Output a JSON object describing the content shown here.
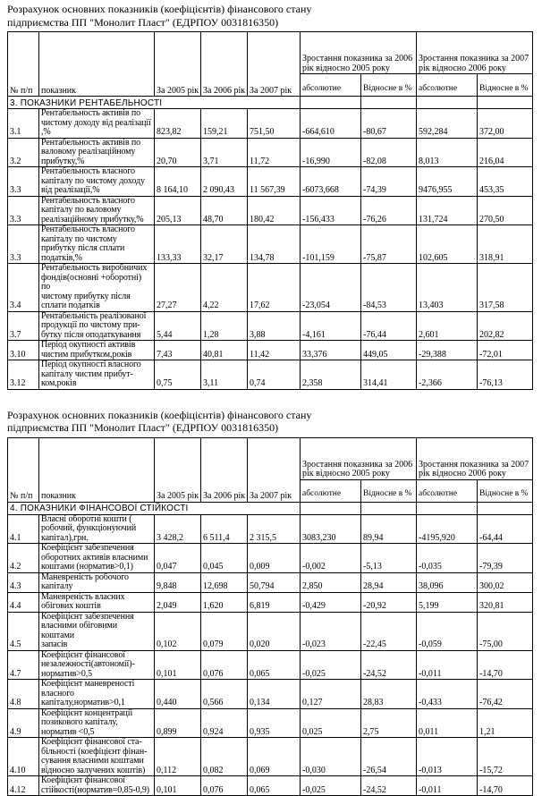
{
  "page": {
    "title_line1": "Розрахунок основних показників (коефіцієнтів) фінансового стану",
    "title_line2": "підприємства ПП \"Монолит Пласт\" (ЕДРПОУ 0031816350)"
  },
  "header": {
    "col_num": "№ п/п",
    "col_indicator": "показник",
    "col_2005": "За 2005 рік",
    "col_2006": "За 2006 рік",
    "col_2007": "За 2007 рік",
    "group_2006": "Зростання показника за 2006 рік відносно 2005 року",
    "group_2007": "Зростання показника за 2007 рік відносно 2006 року",
    "sub_absolute": "абсолютне",
    "sub_relative": "Відносне в %"
  },
  "tables": [
    {
      "section": "3. ПОКАЗНИКИ РЕНТАБЕЛЬНОСТІ",
      "rows": [
        {
          "num": "3.1",
          "indicator": "Рентабельность активів по\nчистому доходу від реалізації\n,%",
          "y2005": "823,82",
          "y2006": "159,21",
          "y2007": "751,50",
          "abs1": "-664,610",
          "rel1": "-80,67",
          "abs2": "592,284",
          "rel2": "372,00"
        },
        {
          "num": "3.2",
          "indicator": "Рентабельность активів по\nваловому реалізаційному\nприбутку,%",
          "y2005": "20,70",
          "y2006": "3,71",
          "y2007": "11,72",
          "abs1": "-16,990",
          "rel1": "-82,08",
          "abs2": "8,013",
          "rel2": "216,04"
        },
        {
          "num": "3.3",
          "indicator": "Рентабельность власного\nкапіталу  по чистому доходу\nвід реалізації,%",
          "y2005": "8 164,10",
          "y2006": "2 090,43",
          "y2007": "11 567,39",
          "abs1": "-6073,668",
          "rel1": "-74,39",
          "abs2": "9476,955",
          "rel2": "453,35"
        },
        {
          "num": "3.3",
          "indicator": "Рентабельность власного\nкапіталу  по валовому\nреалізаційному прибутку,%",
          "y2005": "205,13",
          "y2006": "48,70",
          "y2007": "180,42",
          "abs1": "-156,433",
          "rel1": "-76,26",
          "abs2": "131,724",
          "rel2": "270,50"
        },
        {
          "num": "3.3",
          "indicator": "Рентабельность власного\nкапіталу  по чистому\nприбутку після сплати\nподатків,%",
          "y2005": "133,33",
          "y2006": "32,17",
          "y2007": "134,78",
          "abs1": "-101,159",
          "rel1": "-75,87",
          "abs2": "102,605",
          "rel2": "318,91"
        },
        {
          "num": "3.4",
          "indicator": "Рентабельность виробничих\nфондів(основні +оборотні) по\nчистому прибутку після\nсплати податків",
          "y2005": "27,27",
          "y2006": "4,22",
          "y2007": "17,62",
          "abs1": "-23,054",
          "rel1": "-84,53",
          "abs2": "13,403",
          "rel2": "317,58"
        },
        {
          "num": "3.7",
          "indicator": "Рентабельність реалізованої\nпродукції по чистому при-\nбутку після оподаткування",
          "y2005": "5,44",
          "y2006": "1,28",
          "y2007": "3,88",
          "abs1": "-4,161",
          "rel1": "-76,44",
          "abs2": "2,601",
          "rel2": "202,82"
        },
        {
          "num": "3.10",
          "indicator": "Період окупності активів\nчистим прибутком,років",
          "y2005": "7,43",
          "y2006": "40,81",
          "y2007": "11,42",
          "abs1": "33,376",
          "rel1": "449,05",
          "abs2": "-29,388",
          "rel2": "-72,01"
        },
        {
          "num": "3.12",
          "indicator": "Період окупності власного\nкапіталу чистим прибут-\nком,років",
          "y2005": "0,75",
          "y2006": "3,11",
          "y2007": "0,74",
          "abs1": "2,358",
          "rel1": "314,41",
          "abs2": "-2,366",
          "rel2": "-76,13"
        }
      ]
    },
    {
      "section": "4. ПОКАЗНИКИ ФІНАНСОВОЇ СТІЙКОСТІ",
      "rows": [
        {
          "num": "4.1",
          "indicator": "Власні оборотні кошти (\nробочий, функціонуючий\nкапітал),грн.",
          "y2005": "3 428,2",
          "y2006": "6 511,4",
          "y2007": "2 315,5",
          "abs1": "3083,230",
          "rel1": "89,94",
          "abs2": "-4195,920",
          "rel2": "-64,44"
        },
        {
          "num": "4.2",
          "indicator": "Коефіцієнт забезпечення\nоборотних активів власними\nкоштами (норматив>0,1)",
          "y2005": "0,047",
          "y2006": "0,045",
          "y2007": "0,009",
          "abs1": "-0,002",
          "rel1": "-5,13",
          "abs2": "-0,035",
          "rel2": "-79,39"
        },
        {
          "num": "4.3",
          "indicator": "Маневреність робочого\nкапіталу",
          "y2005": "9,848",
          "y2006": "12,698",
          "y2007": "50,794",
          "abs1": "2,850",
          "rel1": "28,94",
          "abs2": "38,096",
          "rel2": "300,02"
        },
        {
          "num": "4.4",
          "indicator": "Маневреність власних\nобігових коштів",
          "y2005": "2,049",
          "y2006": "1,620",
          "y2007": "6,819",
          "abs1": "-0,429",
          "rel1": "-20,92",
          "abs2": "5,199",
          "rel2": "320,81"
        },
        {
          "num": "4.5",
          "indicator": "Коефіцієнт забезпечення\nвласними обіговими коштами\nзапасів",
          "y2005": "0,102",
          "y2006": "0,079",
          "y2007": "0,020",
          "abs1": "-0,023",
          "rel1": "-22,45",
          "abs2": "-0,059",
          "rel2": "-75,00"
        },
        {
          "num": "4.7",
          "indicator": "Коефіцієнт фінансової\nнезалежності(автономії)-\nнорматив>0,5",
          "y2005": "0,101",
          "y2006": "0,076",
          "y2007": "0,065",
          "abs1": "-0,025",
          "rel1": "-24,52",
          "abs2": "-0,011",
          "rel2": "-14,70"
        },
        {
          "num": "4.8",
          "indicator": "Коефіцієнт маневреності\nвласного\nкапіталу,норматив>0,1",
          "y2005": "0,440",
          "y2006": "0,566",
          "y2007": "0,134",
          "abs1": "0,127",
          "rel1": "28,83",
          "abs2": "-0,433",
          "rel2": "-76,42"
        },
        {
          "num": "4.9",
          "indicator": "Коефіцієнт концентрації\nпозикового капіталу,\nнорматив <0,5",
          "y2005": "0,899",
          "y2006": "0,924",
          "y2007": "0,935",
          "abs1": "0,025",
          "rel1": "2,75",
          "abs2": "0,011",
          "rel2": "1,21"
        },
        {
          "num": "4.10",
          "indicator": "Коефіцієнт фінансової ста-\nбільності (коефіцієнт фінан-\nсування власними коштами\nвідносно залучених коштів)",
          "y2005": "0,112",
          "y2006": "0,082",
          "y2007": "0,069",
          "abs1": "-0,030",
          "rel1": "-26,54",
          "abs2": "-0,013",
          "rel2": "-15,72"
        },
        {
          "num": "4.12",
          "indicator": "Коефіцієнт фінансової\nстійкості(норматив=0,85-0,9)",
          "y2005": "0,101",
          "y2006": "0,076",
          "y2007": "0,065",
          "abs1": "-0,025",
          "rel1": "-24,52",
          "abs2": "-0,011",
          "rel2": "-14,70"
        }
      ]
    }
  ]
}
